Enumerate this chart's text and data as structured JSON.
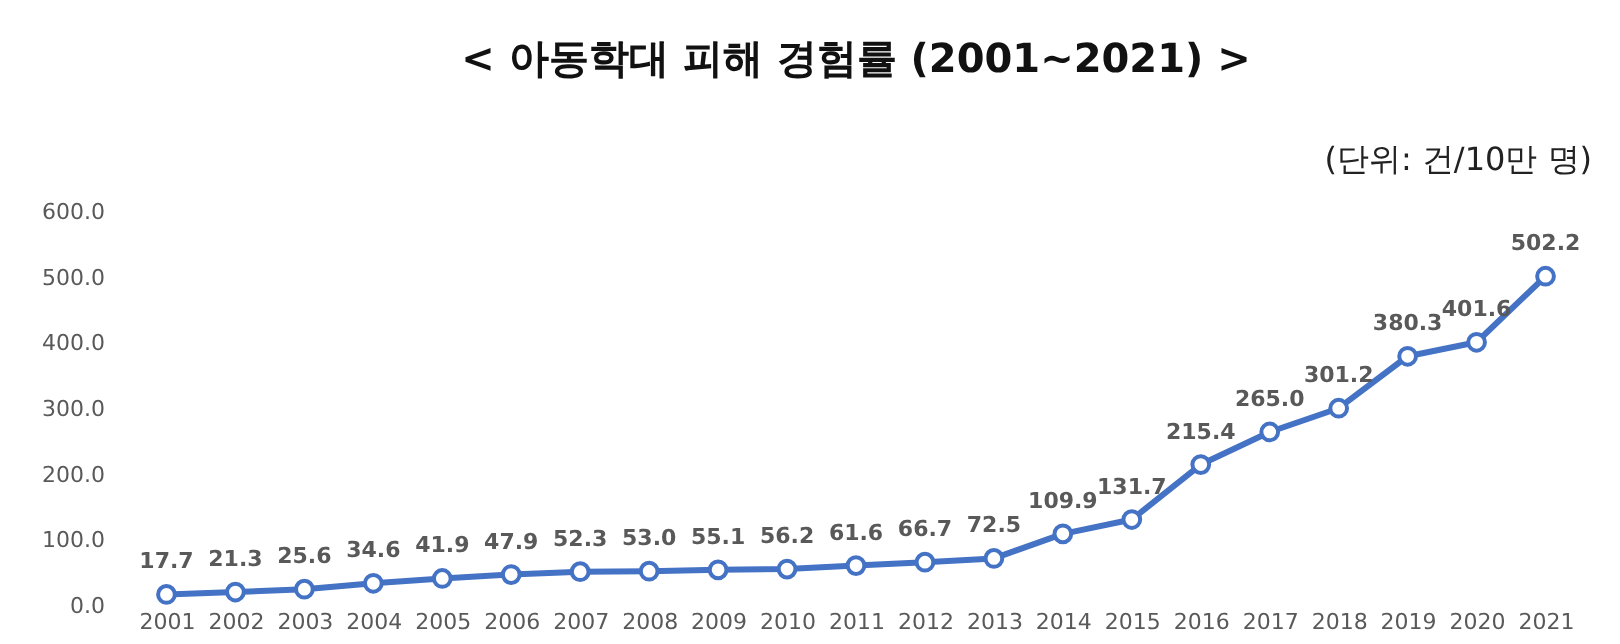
{
  "chart_data": {
    "type": "line",
    "title": "< 아동학대 피해 경험률 (2001~2021) >",
    "annotations": [
      "(단위: 건/10만 명)"
    ],
    "categories": [
      "2001",
      "2002",
      "2003",
      "2004",
      "2005",
      "2006",
      "2007",
      "2008",
      "2009",
      "2010",
      "2011",
      "2012",
      "2013",
      "2014",
      "2015",
      "2016",
      "2017",
      "2018",
      "2019",
      "2020",
      "2021"
    ],
    "series": [
      {
        "color": "#4472c4",
        "values": [
          17.7,
          21.3,
          25.6,
          34.6,
          41.9,
          47.9,
          52.3,
          53.0,
          55.1,
          56.2,
          61.6,
          66.7,
          72.5,
          109.9,
          131.7,
          215.4,
          265.0,
          301.2,
          380.3,
          401.6,
          502.2
        ],
        "value_labels": [
          "17.7",
          "21.3",
          "25.6",
          "34.6",
          "41.9",
          "47.9",
          "52.3",
          "53.0",
          "55.1",
          "56.2",
          "61.6",
          "66.7",
          "72.5",
          "109.9",
          "131.7",
          "215.4",
          "265.0",
          "301.2",
          "380.3",
          "401.6",
          "502.2"
        ]
      }
    ],
    "ylim": [
      0,
      600
    ],
    "yticks": [
      {
        "value": 0,
        "label": "0.0"
      },
      {
        "value": 100,
        "label": "100.0"
      },
      {
        "value": 200,
        "label": "200.0"
      },
      {
        "value": 300,
        "label": "300.0"
      },
      {
        "value": 400,
        "label": "400.0"
      },
      {
        "value": 500,
        "label": "500.0"
      },
      {
        "value": 600,
        "label": "600.0"
      }
    ],
    "marker": "circle",
    "line_style": "solid"
  }
}
